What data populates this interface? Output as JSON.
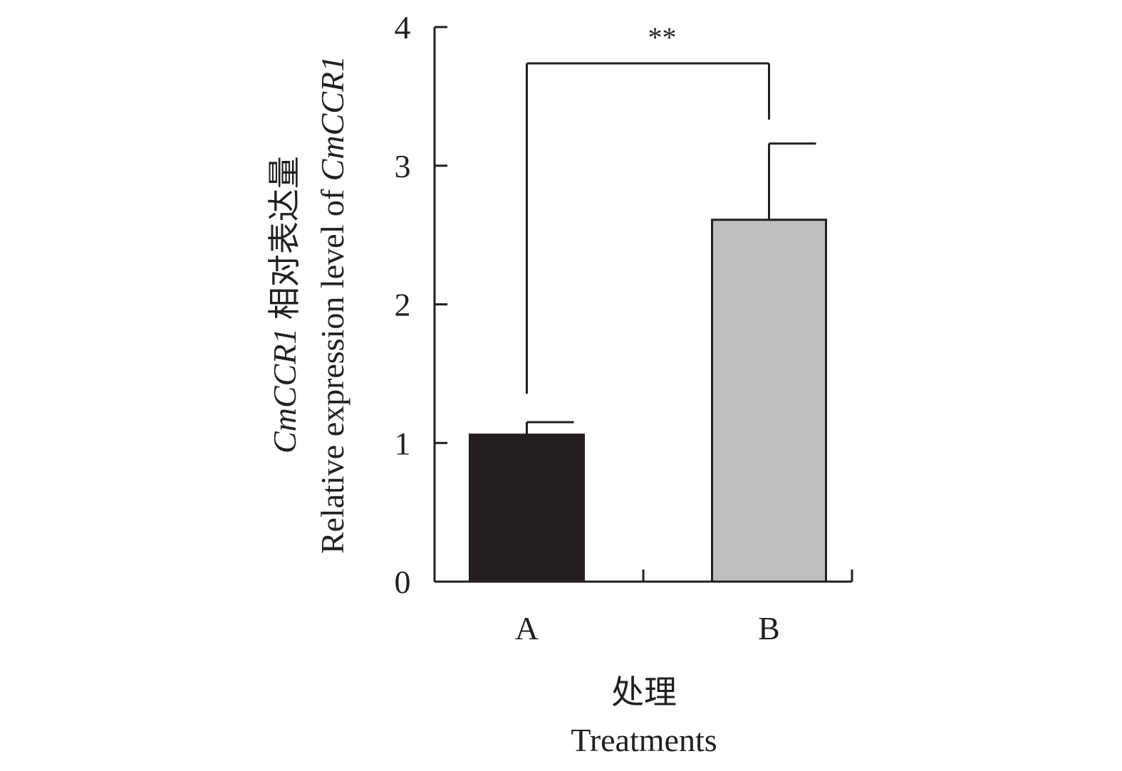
{
  "chart_data": {
    "type": "bar",
    "categories": [
      "A",
      "B"
    ],
    "values": [
      1.06,
      2.61
    ],
    "errors": [
      0.09,
      0.55
    ],
    "colors": [
      "#231f20",
      "#bdbdbd"
    ],
    "ylim": [
      0,
      4
    ],
    "yticks": [
      "0",
      "1",
      "2",
      "3",
      "4"
    ],
    "ylabel_cn": {
      "gene": "CmCCR1",
      "text": " 相对表达量"
    },
    "ylabel_en": {
      "text": "Relative expression level of ",
      "gene": "CmCCR1"
    },
    "xlabel_cn": "处理",
    "xlabel_en": "Treatments",
    "significance": {
      "label": "**",
      "between": [
        "A",
        "B"
      ]
    }
  }
}
